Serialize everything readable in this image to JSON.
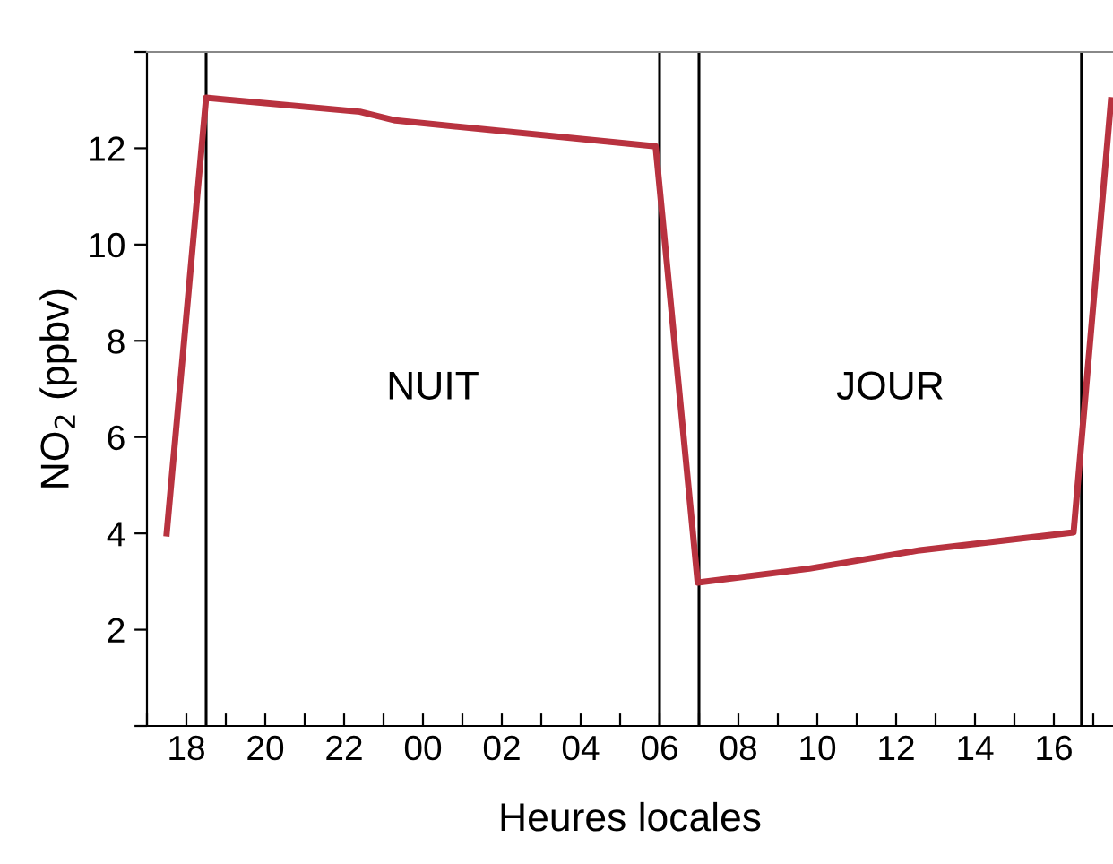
{
  "chart_data": {
    "type": "line",
    "xlabel": "Heures locales",
    "ylabel": "NO$_{2}$ (ppbv)",
    "x": [
      "2000-01-01T17:30",
      "2000-01-01T18:30",
      "2000-01-01T22:24",
      "2000-01-01T23:18",
      "2000-01-02T05:54",
      "2000-01-02T06:58",
      "2000-01-02T09:48",
      "2000-01-02T12:36",
      "2000-01-02T14:36",
      "2000-01-02T16:30",
      "2000-01-02T17:27"
    ],
    "series": [
      {
        "color": "#b8323f",
        "values": [
          4.0,
          13.05,
          12.76,
          12.58,
          12.04,
          2.98,
          3.27,
          3.65,
          3.84,
          4.02,
          13.0
        ]
      }
    ],
    "xlim": [
      "2000-01-01T17:00",
      "2000-01-02T17:30"
    ],
    "ylim": [
      0,
      14
    ],
    "xticks": [
      {
        "value": "2000-01-01T17:00",
        "label": null
      },
      {
        "value": "2000-01-01T18:00",
        "label": "18"
      },
      {
        "value": "2000-01-01T19:00",
        "label": null
      },
      {
        "value": "2000-01-01T20:00",
        "label": "20"
      },
      {
        "value": "2000-01-01T21:00",
        "label": null
      },
      {
        "value": "2000-01-01T22:00",
        "label": "22"
      },
      {
        "value": "2000-01-01T23:00",
        "label": null
      },
      {
        "value": "2000-01-02T00:00",
        "label": "00"
      },
      {
        "value": "2000-01-02T01:00",
        "label": null
      },
      {
        "value": "2000-01-02T02:00",
        "label": "02"
      },
      {
        "value": "2000-01-02T03:00",
        "label": null
      },
      {
        "value": "2000-01-02T04:00",
        "label": "04"
      },
      {
        "value": "2000-01-02T05:00",
        "label": null
      },
      {
        "value": "2000-01-02T06:00",
        "label": "06"
      },
      {
        "value": "2000-01-02T07:00",
        "label": null
      },
      {
        "value": "2000-01-02T08:00",
        "label": "08"
      },
      {
        "value": "2000-01-02T09:00",
        "label": null
      },
      {
        "value": "2000-01-02T10:00",
        "label": "10"
      },
      {
        "value": "2000-01-02T11:00",
        "label": null
      },
      {
        "value": "2000-01-02T12:00",
        "label": "12"
      },
      {
        "value": "2000-01-02T13:00",
        "label": null
      },
      {
        "value": "2000-01-02T14:00",
        "label": "14"
      },
      {
        "value": "2000-01-02T15:00",
        "label": null
      },
      {
        "value": "2000-01-02T16:00",
        "label": "16"
      },
      {
        "value": "2000-01-02T17:00",
        "label": null
      }
    ],
    "yticks": [
      {
        "value": 0,
        "label": null
      },
      2,
      4,
      6,
      8,
      10,
      12,
      {
        "value": 14,
        "label": null
      }
    ],
    "ref_lines": [
      {
        "axis": "x",
        "value": "2000-01-01T18:30",
        "color": "#000000"
      },
      {
        "axis": "x",
        "value": "2000-01-02T06:00",
        "color": "#000000"
      },
      {
        "axis": "x",
        "value": "2000-01-02T07:00",
        "color": "#000000"
      },
      {
        "axis": "x",
        "value": "2000-01-02T16:42",
        "color": "#000000"
      }
    ],
    "annotations": [
      "NUIT",
      "JOUR"
    ],
    "grid": false,
    "legend": false,
    "marker": "none",
    "line_style": "solid"
  }
}
